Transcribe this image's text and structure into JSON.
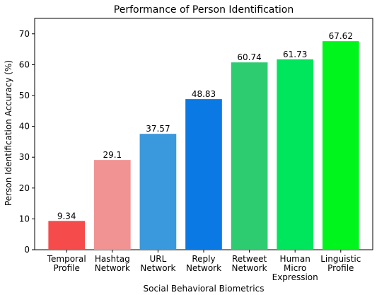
{
  "chart_data": {
    "type": "bar",
    "title": "Performance of Person Identification",
    "xlabel": "Social Behavioral Biometrics",
    "ylabel": "Person Identification Accuracy (%)",
    "ylim": [
      0,
      75
    ],
    "yticks": [
      0,
      10,
      20,
      30,
      40,
      50,
      60,
      70
    ],
    "grid": false,
    "categories": [
      [
        "Temporal",
        "Profile"
      ],
      [
        "Hashtag",
        "Network"
      ],
      [
        "URL",
        "Network"
      ],
      [
        "Reply",
        "Network"
      ],
      [
        "Retweet",
        "Network"
      ],
      [
        "Human",
        "Micro",
        "Expression"
      ],
      [
        "Linguistic",
        "Profile"
      ]
    ],
    "values": [
      9.34,
      29.1,
      37.57,
      48.83,
      60.74,
      61.73,
      67.62
    ],
    "value_labels": [
      "9.34",
      "29.1",
      "37.57",
      "48.83",
      "60.74",
      "61.73",
      "67.62"
    ],
    "colors": [
      "#f54b4b",
      "#f29393",
      "#3a98dc",
      "#0b79e3",
      "#2ecc71",
      "#00e65c",
      "#00f51d"
    ]
  }
}
